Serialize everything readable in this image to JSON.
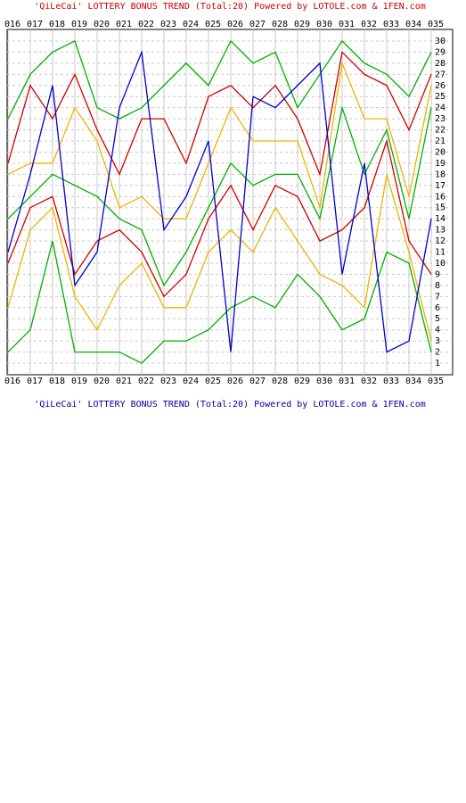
{
  "chart_data": {
    "type": "line",
    "title": "'QiLeCai' LOTTERY BONUS TREND (Total:20)  Powered by LOTOLE.com & 1FEN.com",
    "categories": [
      "016",
      "017",
      "018",
      "019",
      "020",
      "021",
      "022",
      "023",
      "024",
      "025",
      "026",
      "027",
      "028",
      "029",
      "030",
      "031",
      "032",
      "033",
      "034",
      "035"
    ],
    "series": [
      {
        "color": "#00b000",
        "values": [
          2,
          4,
          12,
          2,
          2,
          2,
          1,
          3,
          3,
          4,
          6,
          7,
          6,
          9,
          7,
          4,
          5,
          11,
          10,
          2
        ]
      },
      {
        "color": "#f0b400",
        "values": [
          6,
          13,
          15,
          7,
          4,
          8,
          10,
          6,
          6,
          11,
          13,
          11,
          15,
          12,
          9,
          8,
          6,
          18,
          11,
          3
        ]
      },
      {
        "color": "#d00000",
        "values": [
          10,
          15,
          16,
          9,
          12,
          13,
          11,
          7,
          9,
          14,
          17,
          13,
          17,
          16,
          12,
          13,
          15,
          21,
          12,
          9
        ]
      },
      {
        "color": "#00b000",
        "values": [
          14,
          16,
          18,
          17,
          16,
          14,
          13,
          8,
          11,
          15,
          19,
          17,
          18,
          18,
          14,
          24,
          18,
          22,
          14,
          24
        ]
      },
      {
        "color": "#f0b400",
        "values": [
          18,
          19,
          19,
          24,
          21,
          15,
          16,
          14,
          14,
          19,
          24,
          21,
          21,
          21,
          15,
          28,
          23,
          23,
          16,
          26
        ]
      },
      {
        "color": "#d00000",
        "values": [
          19,
          26,
          23,
          27,
          22,
          18,
          23,
          23,
          19,
          25,
          26,
          24,
          26,
          23,
          18,
          29,
          27,
          26,
          22,
          27
        ]
      },
      {
        "color": "#00b000",
        "values": [
          23,
          27,
          29,
          30,
          24,
          23,
          24,
          26,
          28,
          26,
          30,
          28,
          29,
          24,
          27,
          30,
          28,
          27,
          25,
          29
        ]
      },
      {
        "color": "#0000cc",
        "values": [
          11,
          18,
          26,
          8,
          11,
          24,
          29,
          13,
          16,
          21,
          2,
          25,
          24,
          26,
          28,
          9,
          19,
          2,
          3,
          14
        ]
      }
    ],
    "ylim": [
      0,
      31
    ],
    "yticks": [
      30,
      29,
      28,
      27,
      26,
      25,
      24,
      23,
      22,
      21,
      20,
      19,
      18,
      17,
      16,
      15,
      14,
      13,
      12,
      11,
      10,
      9,
      8,
      7,
      6,
      5,
      4,
      3,
      2,
      1
    ],
    "grid": true
  }
}
